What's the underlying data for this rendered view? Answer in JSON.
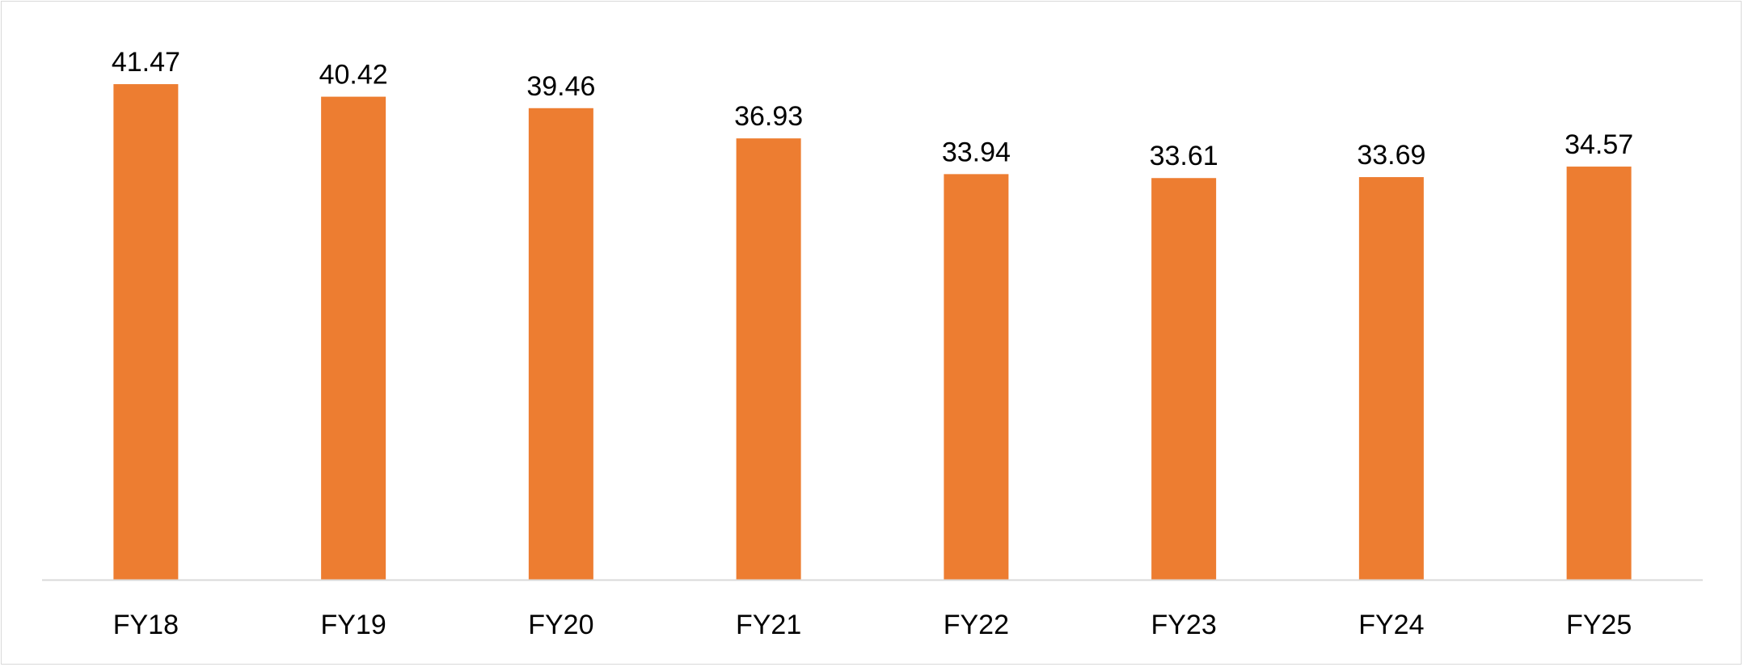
{
  "chart_data": {
    "type": "bar",
    "categories": [
      "FY18",
      "FY19",
      "FY20",
      "FY21",
      "FY22",
      "FY23",
      "FY24",
      "FY25"
    ],
    "values": [
      41.47,
      40.42,
      39.46,
      36.93,
      33.94,
      33.61,
      33.69,
      34.57
    ],
    "title": "",
    "xlabel": "",
    "ylabel": "",
    "ylim": [
      0,
      45
    ],
    "grid": false,
    "legend": "none",
    "data_labels": true,
    "colors": {
      "bar": "#ED7D31",
      "axis": "#D9D9D9",
      "text": "#000000"
    }
  }
}
